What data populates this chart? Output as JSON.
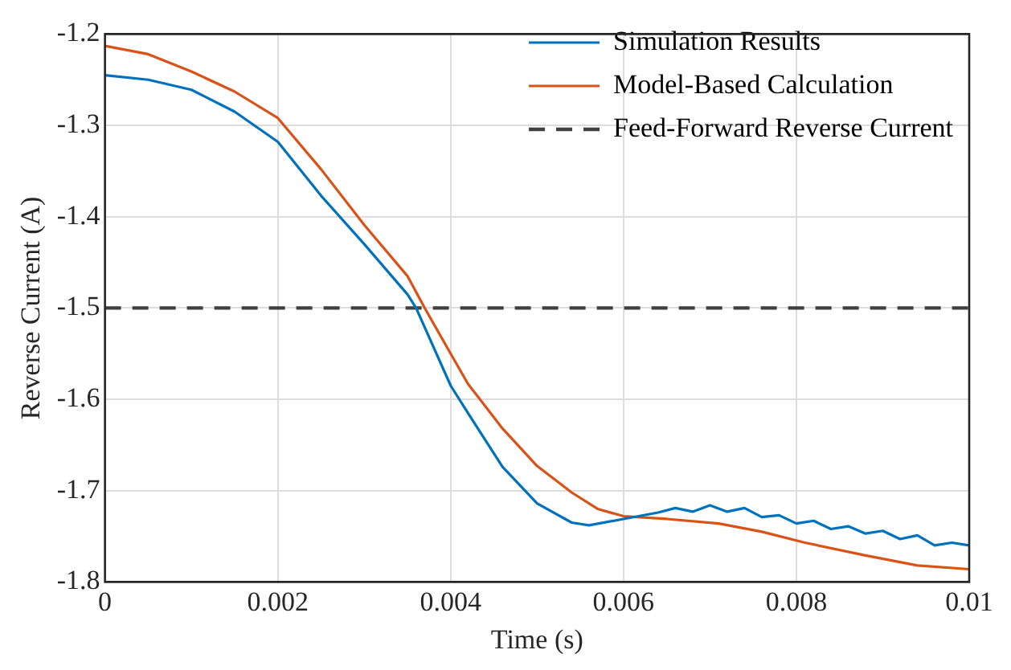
{
  "chart_data": {
    "type": "line",
    "xlabel": "Time (s)",
    "ylabel": "Reverse Current (A)",
    "xlim": [
      0,
      0.01
    ],
    "xticks": [
      0,
      0.002,
      0.004,
      0.006,
      0.008,
      0.01
    ],
    "ylim": [
      -1.8,
      -1.2
    ],
    "yticks": [
      -1.8,
      -1.7,
      -1.6,
      -1.5,
      -1.4,
      -1.3,
      -1.2
    ],
    "grid": true,
    "legend": "top right",
    "marker": "none",
    "series": [
      {
        "name": "Simulation Results",
        "color": "#0072bd",
        "line_style": "solid",
        "x": [
          0,
          0.0005,
          0.001,
          0.0015,
          0.002,
          0.0025,
          0.003,
          0.0035,
          0.0036,
          0.004,
          0.0042,
          0.0046,
          0.005,
          0.0054,
          0.0056,
          0.006,
          0.0064,
          0.0066,
          0.0068,
          0.007,
          0.0072,
          0.0074,
          0.0076,
          0.0078,
          0.008,
          0.0082,
          0.0084,
          0.0086,
          0.0088,
          0.009,
          0.0092,
          0.0094,
          0.0096,
          0.0098,
          0.01
        ],
        "values": [
          -1.245,
          -1.25,
          -1.261,
          -1.285,
          -1.318,
          -1.377,
          -1.43,
          -1.485,
          -1.5,
          -1.585,
          -1.615,
          -1.674,
          -1.714,
          -1.735,
          -1.738,
          -1.731,
          -1.724,
          -1.719,
          -1.723,
          -1.716,
          -1.723,
          -1.719,
          -1.729,
          -1.727,
          -1.736,
          -1.733,
          -1.742,
          -1.739,
          -1.747,
          -1.744,
          -1.753,
          -1.749,
          -1.76,
          -1.757,
          -1.76
        ]
      },
      {
        "name": "Model-Based Calculation",
        "color": "#d95319",
        "line_style": "solid",
        "x": [
          0,
          0.0005,
          0.001,
          0.0015,
          0.002,
          0.0025,
          0.003,
          0.0035,
          0.0037,
          0.004,
          0.0042,
          0.0046,
          0.005,
          0.0054,
          0.0057,
          0.006,
          0.0065,
          0.0071,
          0.0076,
          0.0081,
          0.0088,
          0.0094,
          0.01
        ],
        "values": [
          -1.213,
          -1.222,
          -1.241,
          -1.263,
          -1.292,
          -1.348,
          -1.409,
          -1.465,
          -1.5,
          -1.55,
          -1.583,
          -1.632,
          -1.673,
          -1.702,
          -1.72,
          -1.728,
          -1.731,
          -1.736,
          -1.745,
          -1.757,
          -1.771,
          -1.782,
          -1.786
        ]
      }
    ],
    "ref_lines": [
      {
        "axis": "y",
        "value": -1.5,
        "label": "Feed-Forward Reverse Current",
        "color": "#404040",
        "line_style": "dashed"
      }
    ]
  }
}
